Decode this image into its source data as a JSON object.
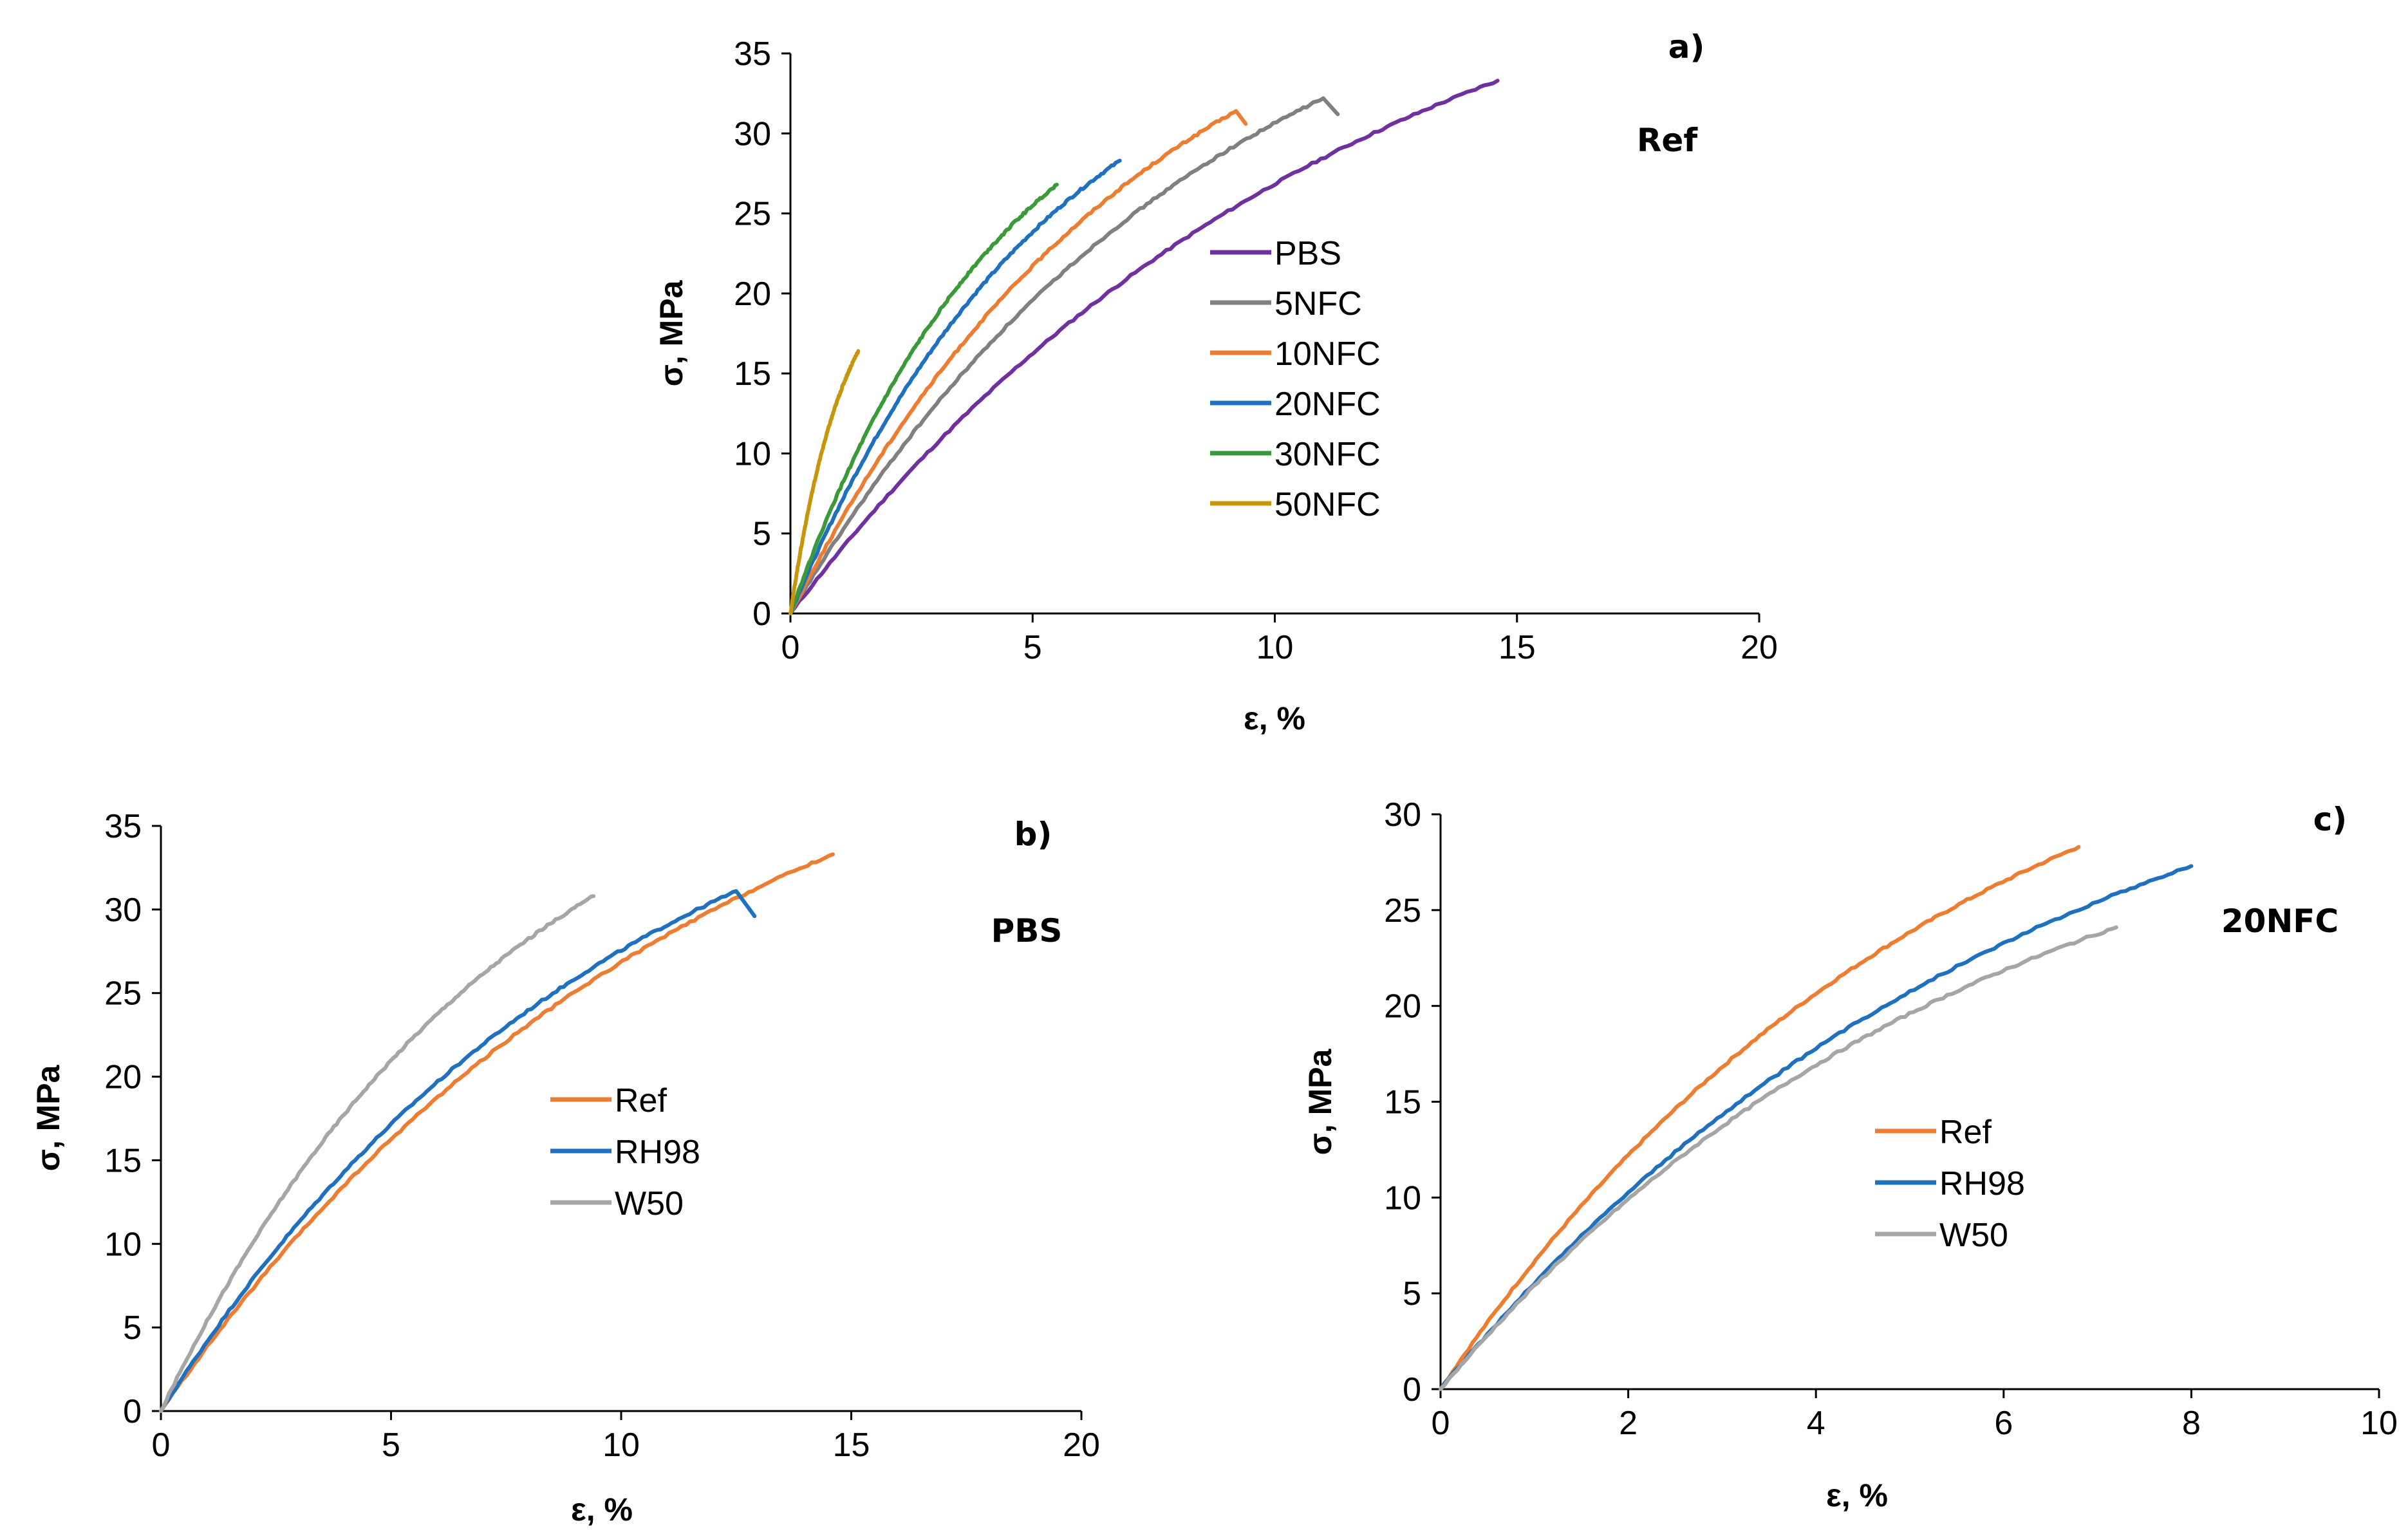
{
  "chart_data": [
    {
      "id": "a",
      "type": "line",
      "panel_label": "a)",
      "annotation": "Ref",
      "xlabel": "ε, %",
      "ylabel": "σ, MPa",
      "xlim": [
        0,
        20
      ],
      "ylim": [
        0,
        35
      ],
      "xticks": [
        "0",
        "5",
        "10",
        "15",
        "20"
      ],
      "yticks": [
        "0",
        "5",
        "10",
        "15",
        "20",
        "25",
        "30",
        "35"
      ],
      "grid": false,
      "legend_position": "center",
      "series": [
        {
          "name": "PBS",
          "color": "#7030A0",
          "end_x": 14.6,
          "end_y": 33.3
        },
        {
          "name": "5NFC",
          "color": "#808080",
          "end_x": 11.0,
          "end_y": 32.2,
          "drop_to": [
            11.3,
            31.2
          ]
        },
        {
          "name": "10NFC",
          "color": "#ED7D31",
          "end_x": 9.2,
          "end_y": 31.4,
          "drop_to": [
            9.4,
            30.6
          ]
        },
        {
          "name": "20NFC",
          "color": "#2070C0",
          "end_x": 6.8,
          "end_y": 28.3
        },
        {
          "name": "30NFC",
          "color": "#3A9A3A",
          "end_x": 5.5,
          "end_y": 26.8
        },
        {
          "name": "50NFC",
          "color": "#C8960C",
          "end_x": 1.4,
          "end_y": 16.4
        }
      ]
    },
    {
      "id": "b",
      "type": "line",
      "panel_label": "b)",
      "annotation": "PBS",
      "xlabel": "ε, %",
      "ylabel": "σ, MPa",
      "xlim": [
        0,
        20
      ],
      "ylim": [
        0,
        35
      ],
      "xticks": [
        "0",
        "5",
        "10",
        "15",
        "20"
      ],
      "yticks": [
        "0",
        "5",
        "10",
        "15",
        "20",
        "25",
        "30",
        "35"
      ],
      "grid": false,
      "legend_position": "center",
      "series": [
        {
          "name": "Ref",
          "color": "#ED7D31",
          "end_x": 14.6,
          "end_y": 33.3
        },
        {
          "name": "RH98",
          "color": "#2070C0",
          "end_x": 12.5,
          "end_y": 31.1,
          "drop_to": [
            12.9,
            29.6
          ]
        },
        {
          "name": "W50",
          "color": "#A6A6A6",
          "end_x": 9.4,
          "end_y": 30.8
        }
      ]
    },
    {
      "id": "c",
      "type": "line",
      "panel_label": "c)",
      "annotation": "20NFC",
      "xlabel": "ε, %",
      "ylabel": "σ, MPa",
      "xlim": [
        0,
        10
      ],
      "ylim": [
        0,
        30
      ],
      "xticks": [
        "0",
        "2",
        "4",
        "6",
        "8",
        "10"
      ],
      "yticks": [
        "0",
        "5",
        "10",
        "15",
        "20",
        "25",
        "30"
      ],
      "grid": false,
      "legend_position": "center",
      "series": [
        {
          "name": "Ref",
          "color": "#ED7D31",
          "end_x": 6.8,
          "end_y": 28.3
        },
        {
          "name": "RH98",
          "color": "#2070C0",
          "end_x": 8.0,
          "end_y": 27.3
        },
        {
          "name": "W50",
          "color": "#A6A6A6",
          "end_x": 7.2,
          "end_y": 24.1
        }
      ]
    }
  ]
}
